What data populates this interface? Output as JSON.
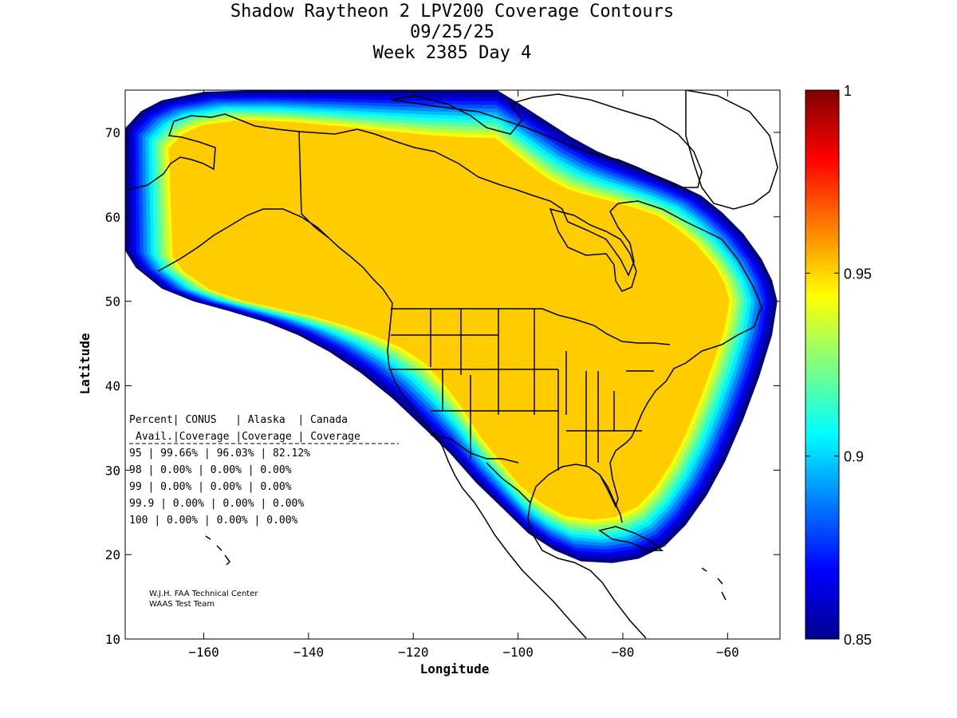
{
  "chart_data": {
    "type": "heatmap",
    "title_lines": [
      "Shadow Raytheon 2 LPV200 Coverage Contours",
      "09/25/25",
      "Week 2385 Day 4"
    ],
    "xlabel": "Longitude",
    "ylabel": "Latitude",
    "xlim": [
      -175,
      -50
    ],
    "ylim": [
      10,
      75
    ],
    "xticks": [
      -160,
      -140,
      -120,
      -100,
      -80,
      -60
    ],
    "yticks": [
      10,
      20,
      30,
      40,
      50,
      60,
      70
    ],
    "colorbar": {
      "range": [
        0.85,
        1
      ],
      "ticks": [
        0.85,
        0.9,
        0.95,
        1
      ],
      "tick_labels": [
        "0.85",
        "0.9",
        "0.95",
        "1"
      ],
      "colormap": "jet"
    },
    "table": {
      "header1": [
        "Percent",
        "CONUS",
        "Alaska",
        "Canada"
      ],
      "header2": [
        "Avail.",
        "Coverage",
        "Coverage",
        "Coverage"
      ],
      "rows": [
        [
          "95",
          "99.66%",
          "96.03%",
          "82.12%"
        ],
        [
          "98",
          "0.00%",
          "0.00%",
          "0.00%"
        ],
        [
          "99",
          "0.00%",
          "0.00%",
          "0.00%"
        ],
        [
          "99.9",
          "0.00%",
          "0.00%",
          "0.00%"
        ],
        [
          "100",
          "0.00%",
          "0.00%",
          "0.00%"
        ]
      ]
    },
    "credits": [
      "W.J.H. FAA Technical Center",
      "WAAS Test Team"
    ],
    "coverage_region": {
      "value_inside": 0.95,
      "edge_value": 0.85,
      "boundary": [
        [
          -175,
          70.5
        ],
        [
          -172,
          72.5
        ],
        [
          -168,
          73.8
        ],
        [
          -160,
          74.8
        ],
        [
          -150,
          75
        ],
        [
          -140,
          75
        ],
        [
          -130,
          75
        ],
        [
          -120,
          75
        ],
        [
          -110,
          75
        ],
        [
          -104,
          75
        ],
        [
          -100,
          73.5
        ],
        [
          -95,
          71.5
        ],
        [
          -90,
          69.5
        ],
        [
          -85,
          67.8
        ],
        [
          -80,
          66.5
        ],
        [
          -75,
          65.3
        ],
        [
          -70,
          64
        ],
        [
          -65,
          62.5
        ],
        [
          -61,
          60.5
        ],
        [
          -57,
          58
        ],
        [
          -53.5,
          55
        ],
        [
          -51.5,
          52.5
        ],
        [
          -50.5,
          50
        ],
        [
          -51.5,
          46
        ],
        [
          -54,
          41
        ],
        [
          -57,
          36
        ],
        [
          -60.5,
          31
        ],
        [
          -64,
          27
        ],
        [
          -68,
          23.5
        ],
        [
          -72,
          21
        ],
        [
          -77,
          19.5
        ],
        [
          -82,
          19
        ],
        [
          -88,
          19.2
        ],
        [
          -93,
          20.5
        ],
        [
          -98,
          22.5
        ],
        [
          -103,
          25.5
        ],
        [
          -108,
          28.5
        ],
        [
          -113,
          32
        ],
        [
          -118,
          35
        ],
        [
          -124,
          38.5
        ],
        [
          -130,
          41.5
        ],
        [
          -136,
          44
        ],
        [
          -142,
          46
        ],
        [
          -148,
          47.5
        ],
        [
          -155,
          48.8
        ],
        [
          -162,
          50
        ],
        [
          -168,
          51.5
        ],
        [
          -173,
          54
        ],
        [
          -175,
          56
        ]
      ]
    }
  }
}
